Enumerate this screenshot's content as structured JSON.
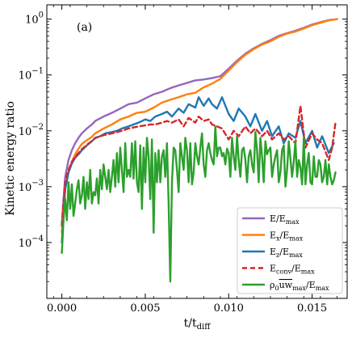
{
  "chart_data": {
    "type": "line",
    "panel_label": "(a)",
    "xlabel": "t/t_diff",
    "ylabel": "Kinetic energy ratio",
    "x_scale": "linear",
    "y_scale": "log",
    "xlim": [
      -0.0009,
      0.0171
    ],
    "ylim": [
      1e-05,
      1.8
    ],
    "x_ticks": [
      0.0,
      0.005,
      0.01,
      0.015
    ],
    "x_tick_labels": [
      "0.000",
      "0.005",
      "0.010",
      "0.015"
    ],
    "y_ticks": [
      0.0001,
      0.001,
      0.01,
      0.1,
      1
    ],
    "y_tick_labels": [
      "10^-4",
      "10^-3",
      "10^-2",
      "10^-1",
      "10^0"
    ],
    "legend_position": "lower-right",
    "series": [
      {
        "name": "E/E_max",
        "color": "#9467bd",
        "dashed": false,
        "x": [
          0.0,
          0.0001,
          0.0002,
          0.0004,
          0.0006,
          0.0008,
          0.001,
          0.0012,
          0.0015,
          0.0018,
          0.002,
          0.0025,
          0.003,
          0.0035,
          0.004,
          0.0045,
          0.005,
          0.0055,
          0.006,
          0.0065,
          0.007,
          0.0075,
          0.008,
          0.0085,
          0.009,
          0.0095,
          0.01,
          0.0105,
          0.011,
          0.0115,
          0.012,
          0.0125,
          0.013,
          0.0135,
          0.014,
          0.0145,
          0.015,
          0.0155,
          0.016,
          0.0165
        ],
        "y": [
          0.00022,
          0.0006,
          0.0015,
          0.003,
          0.0045,
          0.006,
          0.0075,
          0.009,
          0.011,
          0.013,
          0.015,
          0.018,
          0.021,
          0.025,
          0.03,
          0.032,
          0.038,
          0.045,
          0.05,
          0.058,
          0.065,
          0.072,
          0.08,
          0.083,
          0.088,
          0.095,
          0.13,
          0.18,
          0.24,
          0.3,
          0.36,
          0.42,
          0.5,
          0.56,
          0.62,
          0.7,
          0.8,
          0.88,
          0.96,
          1.0
        ]
      },
      {
        "name": "E_x/E_max",
        "color": "#ff7f0e",
        "dashed": false,
        "x": [
          0.0,
          0.0001,
          0.0002,
          0.0004,
          0.0006,
          0.0008,
          0.001,
          0.0012,
          0.0015,
          0.0018,
          0.002,
          0.0025,
          0.003,
          0.0035,
          0.004,
          0.0045,
          0.005,
          0.0055,
          0.006,
          0.0065,
          0.007,
          0.0075,
          0.008,
          0.0085,
          0.009,
          0.0095,
          0.01,
          0.0105,
          0.011,
          0.0115,
          0.012,
          0.0125,
          0.013,
          0.0135,
          0.014,
          0.0145,
          0.015,
          0.0155,
          0.016,
          0.0165
        ],
        "y": [
          0.00015,
          0.0004,
          0.0009,
          0.0018,
          0.0028,
          0.0038,
          0.0048,
          0.0058,
          0.0068,
          0.0078,
          0.009,
          0.011,
          0.013,
          0.016,
          0.018,
          0.021,
          0.022,
          0.026,
          0.032,
          0.036,
          0.04,
          0.045,
          0.048,
          0.06,
          0.07,
          0.085,
          0.12,
          0.17,
          0.23,
          0.29,
          0.35,
          0.4,
          0.48,
          0.55,
          0.6,
          0.68,
          0.78,
          0.86,
          0.95,
          1.0
        ]
      },
      {
        "name": "E_z/E_max",
        "color": "#1f77b4",
        "dashed": false,
        "x": [
          0.0,
          0.0002,
          0.0004,
          0.0006,
          0.0008,
          0.001,
          0.0012,
          0.0015,
          0.0018,
          0.002,
          0.0023,
          0.0026,
          0.003,
          0.0033,
          0.0036,
          0.004,
          0.0043,
          0.0046,
          0.005,
          0.0053,
          0.0056,
          0.006,
          0.0063,
          0.0066,
          0.007,
          0.0073,
          0.0076,
          0.008,
          0.0082,
          0.0085,
          0.0088,
          0.009,
          0.0093,
          0.0096,
          0.01,
          0.0103,
          0.0106,
          0.011,
          0.0113,
          0.0116,
          0.012,
          0.0123,
          0.0126,
          0.013,
          0.0133,
          0.0136,
          0.014,
          0.0143,
          0.0146,
          0.015,
          0.0153,
          0.0156,
          0.016,
          0.0163
        ],
        "y": [
          0.0001,
          0.0009,
          0.0018,
          0.0026,
          0.0033,
          0.0038,
          0.0045,
          0.0055,
          0.0065,
          0.0075,
          0.008,
          0.009,
          0.0095,
          0.01,
          0.011,
          0.012,
          0.013,
          0.014,
          0.016,
          0.015,
          0.018,
          0.02,
          0.022,
          0.018,
          0.025,
          0.021,
          0.03,
          0.026,
          0.04,
          0.028,
          0.038,
          0.03,
          0.025,
          0.04,
          0.02,
          0.015,
          0.025,
          0.018,
          0.012,
          0.02,
          0.01,
          0.015,
          0.008,
          0.012,
          0.006,
          0.009,
          0.0075,
          0.015,
          0.006,
          0.01,
          0.005,
          0.008,
          0.004,
          0.006
        ]
      },
      {
        "name": "E_conv/E_max",
        "color": "#d62728",
        "dashed": true,
        "x": [
          0.0,
          0.0002,
          0.0004,
          0.0006,
          0.0008,
          0.001,
          0.0012,
          0.0015,
          0.0018,
          0.002,
          0.0023,
          0.0026,
          0.003,
          0.0033,
          0.0036,
          0.004,
          0.0043,
          0.0046,
          0.005,
          0.0053,
          0.0056,
          0.006,
          0.0063,
          0.0066,
          0.007,
          0.0073,
          0.0076,
          0.008,
          0.0082,
          0.0085,
          0.0088,
          0.009,
          0.0093,
          0.0096,
          0.01,
          0.0103,
          0.0106,
          0.011,
          0.0113,
          0.0116,
          0.012,
          0.0123,
          0.0126,
          0.013,
          0.0133,
          0.0136,
          0.014,
          0.0143,
          0.0146,
          0.015,
          0.0153,
          0.0156,
          0.016,
          0.0162,
          0.0164
        ],
        "y": [
          0.0002,
          0.0012,
          0.002,
          0.0028,
          0.0034,
          0.004,
          0.0047,
          0.0056,
          0.0066,
          0.0074,
          0.008,
          0.0085,
          0.009,
          0.0095,
          0.01,
          0.011,
          0.0115,
          0.012,
          0.0125,
          0.013,
          0.013,
          0.014,
          0.015,
          0.014,
          0.016,
          0.012,
          0.017,
          0.014,
          0.018,
          0.015,
          0.016,
          0.013,
          0.012,
          0.011,
          0.007,
          0.01,
          0.008,
          0.012,
          0.009,
          0.011,
          0.008,
          0.01,
          0.007,
          0.009,
          0.007,
          0.008,
          0.006,
          0.028,
          0.005,
          0.009,
          0.007,
          0.006,
          0.003,
          0.005,
          0.014
        ]
      },
      {
        "name": "ρ0 uw_max/E_max",
        "color": "#2ca02c",
        "dashed": false,
        "x": [
          0.0,
          0.0001,
          0.0002,
          0.0003,
          0.0004,
          0.0005,
          0.0006,
          0.0007,
          0.0008,
          0.0009,
          0.001,
          0.0011,
          0.0012,
          0.0013,
          0.0014,
          0.0015,
          0.0016,
          0.0017,
          0.0018,
          0.0019,
          0.002,
          0.0021,
          0.0022,
          0.0023,
          0.0024,
          0.0025,
          0.0026,
          0.0027,
          0.0028,
          0.0029,
          0.003,
          0.0031,
          0.0032,
          0.0033,
          0.0034,
          0.0035,
          0.0036,
          0.0037,
          0.0038,
          0.0039,
          0.004,
          0.0041,
          0.0042,
          0.0043,
          0.0044,
          0.0045,
          0.0046,
          0.0047,
          0.0048,
          0.0049,
          0.005,
          0.0051,
          0.0052,
          0.0053,
          0.0054,
          0.0055,
          0.0056,
          0.0057,
          0.0058,
          0.0059,
          0.006,
          0.0061,
          0.0062,
          0.0063,
          0.0064,
          0.0065,
          0.0066,
          0.0067,
          0.0068,
          0.0069,
          0.007,
          0.0071,
          0.0072,
          0.0073,
          0.0074,
          0.0075,
          0.0076,
          0.0077,
          0.0078,
          0.0079,
          0.008,
          0.0081,
          0.0082,
          0.0083,
          0.0084,
          0.0085,
          0.0086,
          0.0087,
          0.0088,
          0.0089,
          0.009,
          0.0091,
          0.0092,
          0.0093,
          0.0094,
          0.0095,
          0.0096,
          0.0097,
          0.0098,
          0.0099,
          0.01,
          0.0101,
          0.0102,
          0.0103,
          0.0104,
          0.0105,
          0.0106,
          0.0107,
          0.0108,
          0.0109,
          0.011,
          0.0111,
          0.0112,
          0.0113,
          0.0114,
          0.0115,
          0.0116,
          0.0117,
          0.0118,
          0.0119,
          0.012,
          0.0121,
          0.0122,
          0.0123,
          0.0124,
          0.0125,
          0.0126,
          0.0127,
          0.0128,
          0.0129,
          0.013,
          0.0131,
          0.0132,
          0.0133,
          0.0134,
          0.0135,
          0.0136,
          0.0137,
          0.0138,
          0.0139,
          0.014,
          0.0141,
          0.0142,
          0.0143,
          0.0144,
          0.0145,
          0.0146,
          0.0147,
          0.0148,
          0.0149,
          0.015,
          0.0151,
          0.0152,
          0.0153,
          0.0154,
          0.0155,
          0.0156,
          0.0157,
          0.0158,
          0.0159,
          0.016,
          0.0161,
          0.0162,
          0.0163,
          0.0164
        ],
        "y": [
          6.5e-05,
          0.00025,
          0.0006,
          0.00025,
          0.0012,
          0.0004,
          0.0011,
          0.0003,
          0.0005,
          0.0009,
          0.0013,
          0.0005,
          0.0007,
          0.0015,
          0.0004,
          0.0012,
          0.0006,
          0.002,
          0.0005,
          0.0008,
          0.0007,
          0.0014,
          0.0005,
          0.002,
          0.0009,
          0.0025,
          0.0015,
          0.0009,
          0.002,
          0.0008,
          0.0015,
          0.003,
          0.001,
          0.004,
          0.0012,
          0.005,
          0.002,
          0.0008,
          0.006,
          0.0015,
          0.002,
          0.0015,
          0.006,
          0.0014,
          0.0065,
          0.0012,
          0.0008,
          0.0055,
          0.0004,
          0.005,
          0.0012,
          0.0075,
          0.0035,
          0.0006,
          0.007,
          0.00015,
          0.004,
          0.0012,
          0.0045,
          0.0012,
          0.0035,
          0.0045,
          0.0015,
          0.006,
          0.0005,
          2e-05,
          0.0012,
          0.005,
          0.0045,
          0.002,
          0.0008,
          0.006,
          0.0035,
          0.002,
          0.0075,
          0.0045,
          0.0012,
          0.006,
          0.0011,
          0.0018,
          0.006,
          0.0035,
          0.0025,
          0.005,
          0.009,
          0.0025,
          0.0015,
          0.0045,
          0.006,
          0.004,
          0.003,
          0.0025,
          0.012,
          0.0035,
          0.005,
          0.005,
          0.0035,
          0.004,
          0.0025,
          0.0048,
          0.004,
          0.0015,
          0.0075,
          0.0035,
          0.002,
          0.008,
          0.003,
          0.0015,
          0.0045,
          0.005,
          0.003,
          0.0012,
          0.0035,
          0.0045,
          0.0025,
          0.0018,
          0.0095,
          0.0045,
          0.0012,
          0.0075,
          0.0035,
          0.0012,
          0.0065,
          0.0038,
          0.0045,
          0.005,
          0.0015,
          0.0025,
          0.0035,
          0.0045,
          0.0012,
          0.0018,
          0.0045,
          0.0055,
          0.001,
          0.002,
          0.0065,
          0.0032,
          0.0015,
          0.0028,
          0.0065,
          0.0015,
          0.003,
          0.0022,
          0.0011,
          0.0075,
          0.0011,
          0.0025,
          0.004,
          0.0012,
          0.0011,
          0.0035,
          0.0015,
          0.0015,
          0.003,
          0.0025,
          0.0012,
          0.0015,
          0.003,
          0.0011,
          0.0025,
          0.0015,
          0.0011,
          0.0013,
          0.0018
        ]
      }
    ]
  }
}
